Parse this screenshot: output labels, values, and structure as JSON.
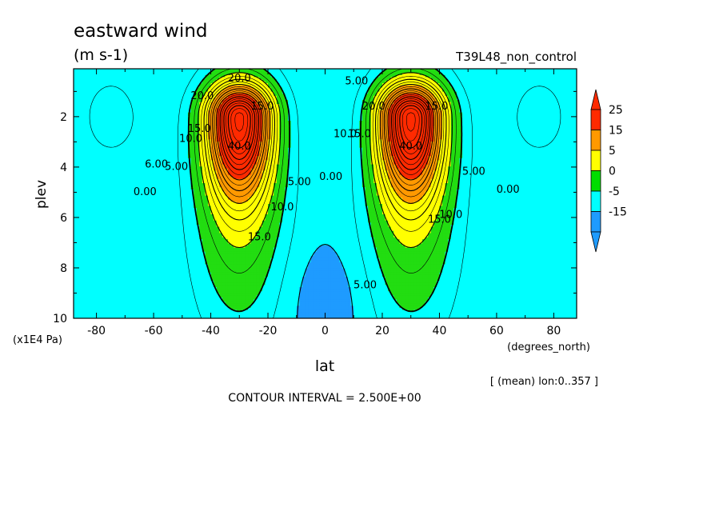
{
  "chart_data": {
    "type": "heatmap",
    "title": "eastward wind",
    "units": "(m s-1)",
    "experiment": "T39L48_non_control",
    "xlabel": "lat",
    "x_units": "(degrees_north)",
    "ylabel": "plev",
    "y_units": "(x1E4 Pa)",
    "xlim": [
      -88,
      88
    ],
    "ylim": [
      10,
      0.1
    ],
    "x_ticks": [
      "-80",
      "-60",
      "-40",
      "-20",
      "0",
      "20",
      "40",
      "60",
      "80"
    ],
    "x_tick_values": [
      -80,
      -60,
      -40,
      -20,
      0,
      20,
      40,
      60,
      80
    ],
    "y_ticks": [
      "2",
      "4",
      "6",
      "8",
      "10"
    ],
    "y_tick_values": [
      2,
      4,
      6,
      8,
      10
    ],
    "contour_interval_text": "CONTOUR INTERVAL = 2.500E+00",
    "mean_note": "[ (mean) lon:0..357 ]",
    "jets": [
      {
        "lat": -30,
        "plev": 2.0,
        "max": 45
      },
      {
        "lat": 30,
        "plev": 2.0,
        "max": 45
      }
    ],
    "equatorial_min": {
      "lat": 0,
      "plev": 9.3,
      "min": -7
    },
    "contour_labels": [
      {
        "text": "40.0",
        "lat": -30,
        "plev": 3.2
      },
      {
        "text": "40.0",
        "lat": 30,
        "plev": 3.2
      },
      {
        "text": "20.0",
        "lat": -43,
        "plev": 1.2
      },
      {
        "text": "20.0",
        "lat": 17,
        "plev": 1.6
      },
      {
        "text": "15.0",
        "lat": -44,
        "plev": 2.5
      },
      {
        "text": "15.0",
        "lat": 12,
        "plev": 2.7
      },
      {
        "text": "15.0",
        "lat": -22,
        "plev": 1.6
      },
      {
        "text": "15.0",
        "lat": 39,
        "plev": 1.6
      },
      {
        "text": "15.0",
        "lat": -23,
        "plev": 6.8
      },
      {
        "text": "15.0",
        "lat": 40,
        "plev": 6.1
      },
      {
        "text": "10.0",
        "lat": -47,
        "plev": 2.9
      },
      {
        "text": "10.0",
        "lat": 7,
        "plev": 2.7
      },
      {
        "text": "10.0",
        "lat": -15,
        "plev": 5.6
      },
      {
        "text": "10.0",
        "lat": 44,
        "plev": 5.9
      },
      {
        "text": "5.00",
        "lat": -52,
        "plev": 4.0
      },
      {
        "text": "5.00",
        "lat": -9,
        "plev": 4.6
      },
      {
        "text": "5.00",
        "lat": 11,
        "plev": 0.6
      },
      {
        "text": "5.00",
        "lat": 52,
        "plev": 4.2
      },
      {
        "text": "5.00",
        "lat": 14,
        "plev": 8.7
      },
      {
        "text": "6.00",
        "lat": -59,
        "plev": 3.9
      },
      {
        "text": "0.00",
        "lat": 2,
        "plev": 4.4
      },
      {
        "text": "0.00",
        "lat": -63,
        "plev": 5.0
      },
      {
        "text": "0.00",
        "lat": 64,
        "plev": 4.9
      },
      {
        "text": "20.0",
        "lat": -30,
        "plev": 0.5
      }
    ],
    "colorbar": {
      "levels": [
        "25",
        "15",
        "5",
        "0",
        "-5",
        "-15"
      ],
      "colors": [
        "#ff2a00",
        "#ff9900",
        "#ffff00",
        "#00dd00",
        "#00ffff",
        "#1e9bff",
        "#ff2a00",
        "#1e9bff"
      ]
    },
    "fill_colors": {
      "red": "#ff2a00",
      "orange": "#ff9900",
      "yellow": "#ffff00",
      "green": "#22dd11",
      "cyan": "#00ffff",
      "blue": "#1e9bff"
    }
  }
}
